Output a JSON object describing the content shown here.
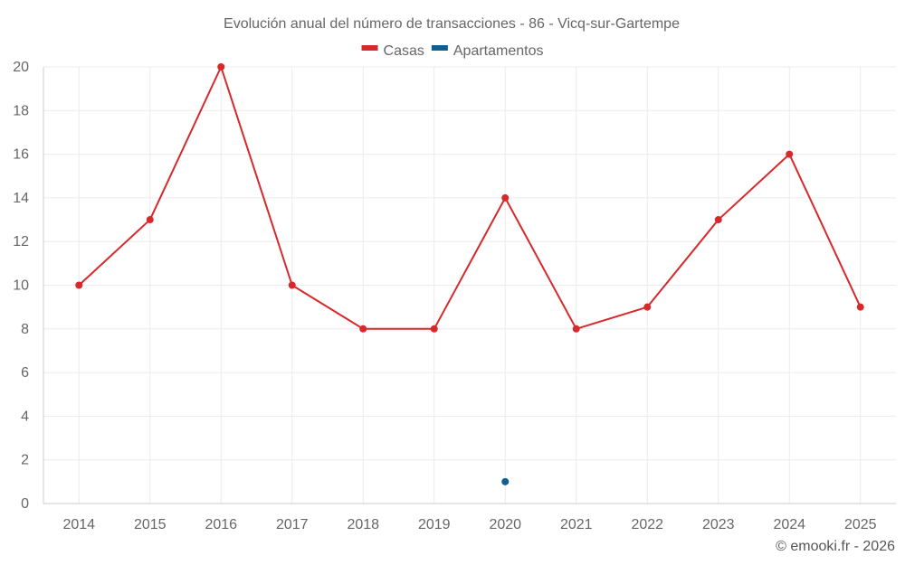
{
  "chart_data": {
    "type": "line",
    "title": "Evolución anual del número de transacciones - 86 - Vicq-sur-Gartempe",
    "categories": [
      "2014",
      "2015",
      "2016",
      "2017",
      "2018",
      "2019",
      "2020",
      "2021",
      "2022",
      "2023",
      "2024",
      "2025"
    ],
    "series": [
      {
        "name": "Casas",
        "color": "#d7282c",
        "values": [
          10,
          13,
          20,
          10,
          8,
          8,
          14,
          8,
          9,
          13,
          16,
          9
        ]
      },
      {
        "name": "Apartamentos",
        "color": "#0a5f95",
        "values": [
          null,
          null,
          null,
          null,
          null,
          null,
          1,
          null,
          null,
          null,
          null,
          null
        ]
      }
    ],
    "ylim": [
      0,
      20
    ],
    "yticks": [
      "0",
      "2",
      "4",
      "6",
      "8",
      "10",
      "12",
      "14",
      "16",
      "18",
      "20"
    ],
    "xlabel": "",
    "ylabel": "",
    "grid": true,
    "legend_position": "top-center"
  },
  "credit": "© emooki.fr - 2026"
}
